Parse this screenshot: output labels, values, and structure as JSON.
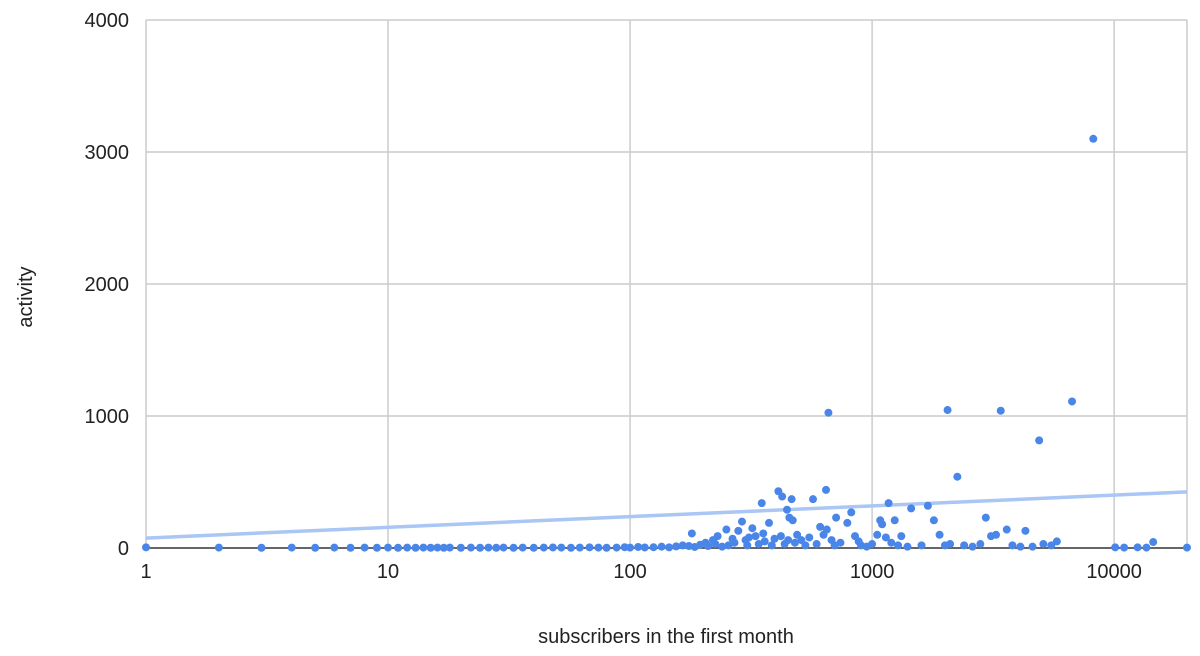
{
  "chart_data": {
    "type": "scatter",
    "title": "",
    "xlabel": "subscribers in the first month",
    "ylabel": "activity",
    "x_scale": "log",
    "xlim": [
      1,
      20000
    ],
    "ylim": [
      0,
      4000
    ],
    "x_ticks": [
      1,
      10,
      100,
      1000,
      10000
    ],
    "x_tick_labels": [
      "1",
      "10",
      "100",
      "1000",
      "10000"
    ],
    "y_ticks": [
      0,
      1000,
      2000,
      3000,
      4000
    ],
    "y_tick_labels": [
      "0",
      "1000",
      "2000",
      "3000",
      "4000"
    ],
    "grid": true,
    "legend": "none",
    "colors": {
      "points": "#4a86e8",
      "trendline": "#a9c6f5",
      "grid": "#cccccc",
      "baseline": "#333333"
    },
    "trendline": {
      "type": "logarithmic",
      "points": [
        [
          1,
          75
        ],
        [
          20000,
          425
        ]
      ]
    },
    "series": [
      {
        "points": [
          [
            1,
            5
          ],
          [
            2,
            3
          ],
          [
            3,
            2
          ],
          [
            4,
            3
          ],
          [
            5,
            2
          ],
          [
            6,
            3
          ],
          [
            7,
            2
          ],
          [
            8,
            3
          ],
          [
            9,
            2
          ],
          [
            10,
            3
          ],
          [
            11,
            2
          ],
          [
            12,
            3
          ],
          [
            13,
            2
          ],
          [
            14,
            3
          ],
          [
            15,
            2
          ],
          [
            16,
            3
          ],
          [
            17,
            2
          ],
          [
            18,
            3
          ],
          [
            20,
            2
          ],
          [
            22,
            3
          ],
          [
            24,
            2
          ],
          [
            26,
            3
          ],
          [
            28,
            2
          ],
          [
            30,
            3
          ],
          [
            33,
            2
          ],
          [
            36,
            3
          ],
          [
            40,
            2
          ],
          [
            44,
            3
          ],
          [
            48,
            4
          ],
          [
            52,
            3
          ],
          [
            57,
            2
          ],
          [
            62,
            3
          ],
          [
            68,
            5
          ],
          [
            74,
            3
          ],
          [
            80,
            2
          ],
          [
            88,
            3
          ],
          [
            95,
            6
          ],
          [
            100,
            3
          ],
          [
            108,
            8
          ],
          [
            115,
            4
          ],
          [
            125,
            6
          ],
          [
            135,
            10
          ],
          [
            145,
            5
          ],
          [
            155,
            12
          ],
          [
            165,
            20
          ],
          [
            175,
            15
          ],
          [
            180,
            110
          ],
          [
            185,
            8
          ],
          [
            195,
            25
          ],
          [
            205,
            40
          ],
          [
            210,
            15
          ],
          [
            220,
            60
          ],
          [
            225,
            30
          ],
          [
            230,
            90
          ],
          [
            240,
            10
          ],
          [
            250,
            140
          ],
          [
            255,
            20
          ],
          [
            265,
            70
          ],
          [
            270,
            40
          ],
          [
            280,
            130
          ],
          [
            290,
            200
          ],
          [
            300,
            60
          ],
          [
            305,
            20
          ],
          [
            310,
            80
          ],
          [
            320,
            150
          ],
          [
            330,
            90
          ],
          [
            340,
            30
          ],
          [
            350,
            340
          ],
          [
            355,
            110
          ],
          [
            360,
            50
          ],
          [
            375,
            190
          ],
          [
            385,
            20
          ],
          [
            395,
            70
          ],
          [
            410,
            430
          ],
          [
            420,
            90
          ],
          [
            425,
            390
          ],
          [
            435,
            30
          ],
          [
            445,
            290
          ],
          [
            450,
            60
          ],
          [
            455,
            230
          ],
          [
            465,
            370
          ],
          [
            470,
            210
          ],
          [
            480,
            40
          ],
          [
            490,
            100
          ],
          [
            510,
            60
          ],
          [
            530,
            20
          ],
          [
            550,
            80
          ],
          [
            570,
            370
          ],
          [
            590,
            30
          ],
          [
            610,
            160
          ],
          [
            630,
            100
          ],
          [
            645,
            440
          ],
          [
            650,
            140
          ],
          [
            660,
            1025
          ],
          [
            680,
            60
          ],
          [
            700,
            20
          ],
          [
            710,
            230
          ],
          [
            740,
            40
          ],
          [
            790,
            190
          ],
          [
            820,
            270
          ],
          [
            850,
            90
          ],
          [
            880,
            50
          ],
          [
            900,
            20
          ],
          [
            950,
            10
          ],
          [
            1000,
            30
          ],
          [
            1050,
            100
          ],
          [
            1080,
            210
          ],
          [
            1100,
            180
          ],
          [
            1140,
            80
          ],
          [
            1170,
            340
          ],
          [
            1200,
            40
          ],
          [
            1240,
            210
          ],
          [
            1280,
            20
          ],
          [
            1320,
            90
          ],
          [
            1400,
            10
          ],
          [
            1450,
            300
          ],
          [
            1600,
            20
          ],
          [
            1700,
            320
          ],
          [
            1800,
            210
          ],
          [
            1900,
            100
          ],
          [
            2000,
            20
          ],
          [
            2050,
            1045
          ],
          [
            2100,
            30
          ],
          [
            2250,
            540
          ],
          [
            2400,
            20
          ],
          [
            2600,
            10
          ],
          [
            2800,
            30
          ],
          [
            2950,
            230
          ],
          [
            3100,
            90
          ],
          [
            3250,
            100
          ],
          [
            3400,
            1040
          ],
          [
            3600,
            140
          ],
          [
            3800,
            20
          ],
          [
            4100,
            10
          ],
          [
            4300,
            130
          ],
          [
            4600,
            10
          ],
          [
            4900,
            815
          ],
          [
            5100,
            30
          ],
          [
            5500,
            20
          ],
          [
            5800,
            50
          ],
          [
            6700,
            1110
          ],
          [
            8200,
            3100
          ],
          [
            10100,
            5
          ],
          [
            11000,
            3
          ],
          [
            12500,
            5
          ],
          [
            13600,
            3
          ],
          [
            14500,
            45
          ],
          [
            20000,
            3
          ]
        ]
      }
    ]
  }
}
